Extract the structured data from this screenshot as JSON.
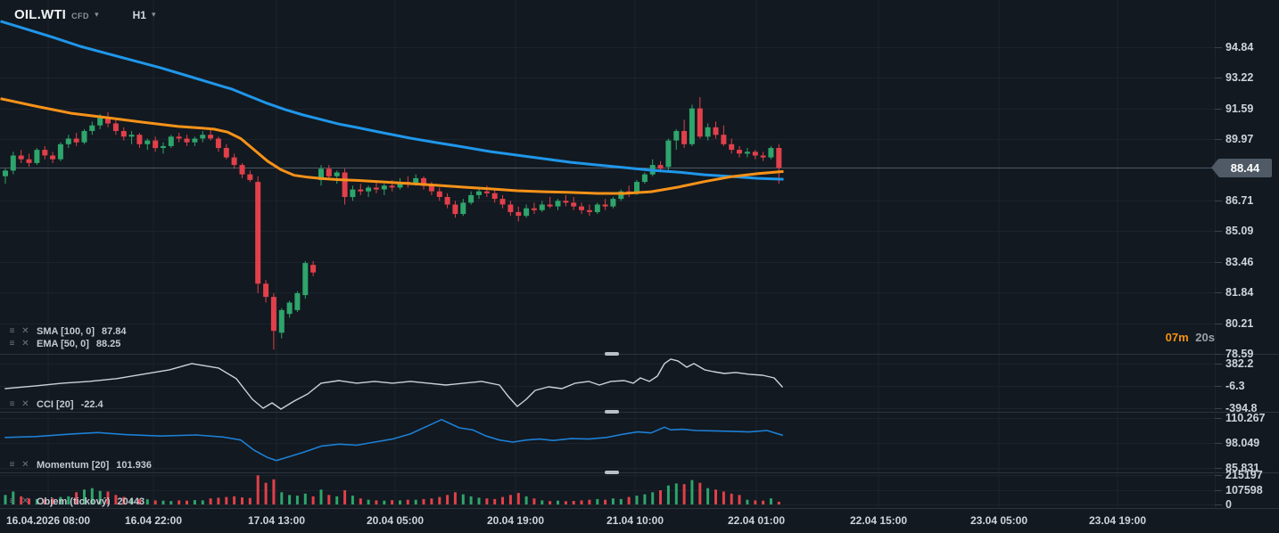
{
  "topbar": {
    "symbol": "OIL.WTI",
    "instrument_type": "CFD",
    "timeframe": "H1"
  },
  "icons": {
    "menu": "≡",
    "close": "✕",
    "caret": "▾"
  },
  "countdown": {
    "minutes": "07m",
    "seconds": "20s"
  },
  "price_axis": {
    "current_price": "88.44"
  },
  "indicators": {
    "sma": {
      "label": "SMA [100, 0]",
      "value": "87.84"
    },
    "ema": {
      "label": "EMA [50, 0]",
      "value": "88.25"
    },
    "cci": {
      "label": "CCI [20]",
      "value": "-22.4"
    },
    "momentum": {
      "label": "Momentum [20]",
      "value": "101.936"
    },
    "volume": {
      "label": "Objem (tickový)",
      "value": "20443"
    }
  },
  "time_axis": {
    "labels": [
      "16.04.2026 08:00",
      "16.04 22:00",
      "17.04 13:00",
      "20.04 05:00",
      "20.04 19:00",
      "21.04 10:00",
      "22.04 01:00",
      "22.04 15:00",
      "23.04 05:00",
      "23.04 19:00"
    ],
    "positions": [
      54,
      172,
      310,
      443,
      578,
      712,
      848,
      985,
      1120,
      1253
    ]
  },
  "colors": {
    "bg": "#121920",
    "grid": "#1c232c",
    "divider": "#2b333d",
    "handle": "#b9c0c8",
    "up": "#2ea56b",
    "down": "#e1404a",
    "sma": "#1f97ea",
    "ema": "#f79219",
    "cci_line": "#ccd2d8",
    "momentum_line": "#1d7fd4",
    "price_line": "#4d5968",
    "axis_tick": "#39424d",
    "badge_bg": "#4f5a66"
  },
  "chart_data": {
    "type": "candlestick",
    "symbol": "OIL.WTI",
    "timeframe": "H1",
    "x_start": 6,
    "x_step": 8.85,
    "main_ylim": [
      78.58,
      97.35
    ],
    "price_ticks": [
      94.84,
      93.22,
      91.59,
      89.97,
      86.71,
      85.09,
      83.46,
      81.84,
      80.21,
      78.59
    ],
    "current_price": 88.44,
    "candles": [
      [
        88.0,
        88.4,
        87.6,
        88.3
      ],
      [
        88.3,
        89.3,
        88.1,
        89.1
      ],
      [
        89.1,
        89.4,
        88.7,
        88.9
      ],
      [
        88.9,
        89.2,
        88.5,
        88.7
      ],
      [
        88.7,
        89.5,
        88.6,
        89.4
      ],
      [
        89.4,
        89.6,
        88.9,
        89.1
      ],
      [
        89.1,
        89.3,
        88.7,
        88.9
      ],
      [
        88.9,
        89.8,
        88.8,
        89.7
      ],
      [
        89.7,
        90.2,
        89.5,
        90.0
      ],
      [
        90.0,
        90.3,
        89.6,
        89.8
      ],
      [
        89.8,
        90.5,
        89.7,
        90.4
      ],
      [
        90.4,
        90.9,
        90.2,
        90.7
      ],
      [
        90.7,
        91.3,
        90.5,
        91.1
      ],
      [
        91.1,
        91.4,
        90.6,
        90.8
      ],
      [
        90.8,
        91.0,
        90.2,
        90.4
      ],
      [
        90.4,
        90.6,
        89.9,
        90.1
      ],
      [
        90.1,
        90.4,
        89.7,
        90.2
      ],
      [
        90.2,
        90.3,
        89.5,
        89.7
      ],
      [
        89.7,
        90.0,
        89.4,
        89.9
      ],
      [
        89.9,
        90.1,
        89.3,
        89.5
      ],
      [
        89.5,
        89.8,
        89.2,
        89.6
      ],
      [
        89.6,
        90.2,
        89.5,
        90.1
      ],
      [
        90.1,
        90.3,
        89.8,
        90.0
      ],
      [
        90.0,
        90.2,
        89.6,
        89.8
      ],
      [
        89.8,
        90.1,
        89.6,
        90.0
      ],
      [
        90.0,
        90.4,
        89.8,
        90.2
      ],
      [
        90.2,
        90.5,
        89.9,
        90.0
      ],
      [
        90.0,
        90.1,
        89.3,
        89.5
      ],
      [
        89.5,
        89.7,
        88.9,
        89.0
      ],
      [
        89.0,
        89.2,
        88.4,
        88.6
      ],
      [
        88.6,
        88.7,
        87.9,
        88.1
      ],
      [
        88.1,
        88.3,
        87.7,
        87.8
      ],
      [
        87.7,
        88.0,
        81.8,
        82.3
      ],
      [
        82.3,
        82.5,
        81.3,
        81.6
      ],
      [
        81.6,
        81.8,
        78.8,
        79.8
      ],
      [
        79.7,
        81.0,
        79.4,
        80.9
      ],
      [
        80.7,
        81.4,
        80.5,
        81.3
      ],
      [
        80.9,
        81.9,
        80.8,
        81.8
      ],
      [
        81.7,
        83.5,
        81.5,
        83.4
      ],
      [
        83.3,
        83.5,
        82.7,
        82.9
      ],
      [
        87.8,
        88.6,
        87.5,
        88.4
      ],
      [
        88.4,
        88.6,
        87.8,
        88.0
      ],
      [
        88.0,
        88.3,
        87.6,
        88.2
      ],
      [
        88.2,
        88.4,
        86.5,
        86.9
      ],
      [
        86.9,
        87.5,
        86.7,
        87.3
      ],
      [
        87.3,
        87.6,
        87.0,
        87.2
      ],
      [
        87.2,
        87.5,
        86.9,
        87.4
      ],
      [
        87.4,
        87.7,
        87.1,
        87.3
      ],
      [
        87.3,
        87.6,
        87.0,
        87.5
      ],
      [
        87.5,
        87.8,
        87.2,
        87.4
      ],
      [
        87.4,
        87.9,
        87.3,
        87.7
      ],
      [
        87.7,
        88.0,
        87.4,
        87.6
      ],
      [
        87.6,
        88.1,
        87.5,
        87.9
      ],
      [
        87.9,
        88.0,
        87.3,
        87.5
      ],
      [
        87.5,
        87.7,
        87.0,
        87.2
      ],
      [
        87.2,
        87.4,
        86.7,
        86.9
      ],
      [
        86.9,
        87.1,
        86.3,
        86.5
      ],
      [
        86.5,
        86.7,
        85.8,
        86.0
      ],
      [
        86.0,
        86.8,
        85.9,
        86.6
      ],
      [
        86.6,
        87.2,
        86.5,
        87.0
      ],
      [
        87.0,
        87.4,
        86.8,
        87.2
      ],
      [
        87.2,
        87.5,
        86.9,
        87.1
      ],
      [
        87.1,
        87.3,
        86.6,
        86.8
      ],
      [
        86.8,
        87.0,
        86.3,
        86.5
      ],
      [
        86.5,
        86.7,
        85.9,
        86.1
      ],
      [
        86.1,
        86.4,
        85.6,
        85.9
      ],
      [
        85.9,
        86.5,
        85.8,
        86.3
      ],
      [
        86.3,
        86.6,
        86.0,
        86.2
      ],
      [
        86.2,
        86.7,
        86.1,
        86.5
      ],
      [
        86.5,
        86.9,
        86.3,
        86.4
      ],
      [
        86.4,
        86.8,
        86.2,
        86.7
      ],
      [
        86.7,
        87.0,
        86.4,
        86.6
      ],
      [
        86.6,
        86.9,
        86.2,
        86.4
      ],
      [
        86.4,
        86.6,
        86.0,
        86.2
      ],
      [
        86.2,
        86.5,
        85.9,
        86.1
      ],
      [
        86.1,
        86.6,
        86.0,
        86.5
      ],
      [
        86.5,
        86.8,
        86.2,
        86.4
      ],
      [
        86.4,
        86.9,
        86.3,
        86.8
      ],
      [
        86.8,
        87.3,
        86.7,
        87.2
      ],
      [
        87.2,
        87.5,
        86.9,
        87.1
      ],
      [
        87.1,
        87.8,
        87.0,
        87.7
      ],
      [
        87.7,
        88.2,
        87.6,
        88.1
      ],
      [
        88.1,
        88.9,
        88.0,
        88.6
      ],
      [
        88.6,
        88.8,
        88.2,
        88.4
      ],
      [
        88.5,
        90.0,
        88.3,
        89.9
      ],
      [
        89.9,
        90.5,
        89.4,
        90.4
      ],
      [
        90.4,
        91.0,
        89.5,
        89.7
      ],
      [
        89.7,
        91.8,
        89.6,
        91.6
      ],
      [
        91.6,
        92.2,
        90.0,
        90.1
      ],
      [
        90.1,
        90.8,
        89.9,
        90.6
      ],
      [
        90.6,
        90.9,
        90.0,
        90.2
      ],
      [
        90.2,
        90.7,
        89.6,
        89.7
      ],
      [
        89.7,
        90.0,
        89.2,
        89.4
      ],
      [
        89.4,
        89.6,
        89.0,
        89.2
      ],
      [
        89.2,
        89.5,
        89.0,
        89.3
      ],
      [
        89.3,
        89.4,
        88.9,
        89.1
      ],
      [
        89.1,
        89.3,
        88.8,
        89.0
      ],
      [
        89.0,
        89.6,
        88.9,
        89.5
      ],
      [
        89.5,
        89.7,
        87.6,
        88.44
      ]
    ],
    "volumes": [
      70000,
      95000,
      60000,
      45000,
      40000,
      38000,
      45000,
      55000,
      60000,
      90000,
      110000,
      120000,
      100000,
      95000,
      70000,
      55000,
      45000,
      40000,
      38000,
      30000,
      28000,
      25000,
      30000,
      28000,
      32000,
      30000,
      45000,
      50000,
      55000,
      60000,
      52000,
      48000,
      215197,
      160000,
      185000,
      90000,
      70000,
      65000,
      80000,
      60000,
      110000,
      70000,
      60000,
      105000,
      65000,
      45000,
      35000,
      30000,
      28000,
      32000,
      30000,
      35000,
      35000,
      40000,
      45000,
      55000,
      70000,
      90000,
      75000,
      60000,
      50000,
      45000,
      40000,
      55000,
      70000,
      85000,
      60000,
      45000,
      30000,
      25000,
      28000,
      24000,
      26000,
      30000,
      35000,
      40000,
      35000,
      45000,
      40000,
      55000,
      65000,
      75000,
      90000,
      105000,
      140000,
      155000,
      150000,
      180000,
      160000,
      120000,
      110000,
      95000,
      80000,
      70000,
      35000,
      30000,
      28000,
      45000,
      20443
    ],
    "volume_ticks": [
      215197,
      107598,
      0
    ],
    "volume_max": 230000,
    "overlays": {
      "sma100": [
        [
          2,
          96.2
        ],
        [
          30,
          95.8
        ],
        [
          60,
          95.36
        ],
        [
          90,
          94.89
        ],
        [
          120,
          94.51
        ],
        [
          150,
          94.13
        ],
        [
          180,
          93.75
        ],
        [
          210,
          93.33
        ],
        [
          240,
          92.9
        ],
        [
          260,
          92.62
        ],
        [
          280,
          92.24
        ],
        [
          300,
          91.86
        ],
        [
          320,
          91.53
        ],
        [
          340,
          91.25
        ],
        [
          360,
          91.01
        ],
        [
          380,
          90.77
        ],
        [
          400,
          90.59
        ],
        [
          430,
          90.3
        ],
        [
          460,
          90.02
        ],
        [
          490,
          89.78
        ],
        [
          520,
          89.55
        ],
        [
          550,
          89.31
        ],
        [
          580,
          89.12
        ],
        [
          610,
          88.93
        ],
        [
          640,
          88.74
        ],
        [
          670,
          88.6
        ],
        [
          700,
          88.46
        ],
        [
          730,
          88.32
        ],
        [
          760,
          88.22
        ],
        [
          790,
          88.08
        ],
        [
          820,
          87.99
        ],
        [
          850,
          87.89
        ],
        [
          877,
          87.84
        ]
      ],
      "ema50": [
        [
          2,
          92.1
        ],
        [
          40,
          91.72
        ],
        [
          80,
          91.34
        ],
        [
          120,
          91.11
        ],
        [
          160,
          90.87
        ],
        [
          200,
          90.64
        ],
        [
          225,
          90.56
        ],
        [
          240,
          90.5
        ],
        [
          255,
          90.35
        ],
        [
          270,
          90.0
        ],
        [
          285,
          89.4
        ],
        [
          300,
          88.8
        ],
        [
          315,
          88.35
        ],
        [
          330,
          88.05
        ],
        [
          345,
          87.95
        ],
        [
          360,
          87.88
        ],
        [
          380,
          87.82
        ],
        [
          400,
          87.78
        ],
        [
          430,
          87.7
        ],
        [
          460,
          87.61
        ],
        [
          490,
          87.52
        ],
        [
          520,
          87.42
        ],
        [
          550,
          87.33
        ],
        [
          580,
          87.23
        ],
        [
          610,
          87.18
        ],
        [
          640,
          87.14
        ],
        [
          670,
          87.09
        ],
        [
          700,
          87.09
        ],
        [
          730,
          87.18
        ],
        [
          760,
          87.42
        ],
        [
          790,
          87.72
        ],
        [
          820,
          87.98
        ],
        [
          850,
          88.14
        ],
        [
          877,
          88.25
        ]
      ]
    },
    "cci": {
      "ticks": [
        382.2,
        -6.3,
        -394.8
      ],
      "ylim": [
        -459,
        539
      ],
      "points": [
        [
          6,
          -53
        ],
        [
          40,
          -6
        ],
        [
          70,
          41
        ],
        [
          100,
          72
        ],
        [
          130,
          119
        ],
        [
          160,
          197
        ],
        [
          190,
          275
        ],
        [
          215,
          384
        ],
        [
          245,
          306
        ],
        [
          265,
          119
        ],
        [
          283,
          -240
        ],
        [
          295,
          -396
        ],
        [
          305,
          -303
        ],
        [
          315,
          -412
        ],
        [
          330,
          -271
        ],
        [
          345,
          -147
        ],
        [
          360,
          41
        ],
        [
          380,
          87
        ],
        [
          400,
          41
        ],
        [
          420,
          72
        ],
        [
          440,
          41
        ],
        [
          460,
          72
        ],
        [
          480,
          41
        ],
        [
          500,
          9
        ],
        [
          520,
          41
        ],
        [
          540,
          72
        ],
        [
          560,
          9
        ],
        [
          570,
          -193
        ],
        [
          580,
          -365
        ],
        [
          590,
          -240
        ],
        [
          600,
          -84
        ],
        [
          615,
          -22
        ],
        [
          630,
          -53
        ],
        [
          645,
          41
        ],
        [
          660,
          72
        ],
        [
          672,
          9
        ],
        [
          685,
          72
        ],
        [
          700,
          87
        ],
        [
          710,
          41
        ],
        [
          718,
          134
        ],
        [
          728,
          72
        ],
        [
          737,
          165
        ],
        [
          745,
          384
        ],
        [
          752,
          462
        ],
        [
          760,
          431
        ],
        [
          770,
          321
        ],
        [
          778,
          384
        ],
        [
          790,
          275
        ],
        [
          800,
          243
        ],
        [
          812,
          212
        ],
        [
          825,
          228
        ],
        [
          840,
          197
        ],
        [
          855,
          181
        ],
        [
          868,
          134
        ],
        [
          877,
          -22.4
        ]
      ]
    },
    "momentum": {
      "ticks": [
        110.267,
        98.049,
        85.831
      ],
      "ylim": [
        83.7,
        112.9
      ],
      "points": [
        [
          6,
          100.8
        ],
        [
          40,
          101.2
        ],
        [
          80,
          102.5
        ],
        [
          110,
          103.2
        ],
        [
          140,
          102.2
        ],
        [
          180,
          101.5
        ],
        [
          220,
          102
        ],
        [
          250,
          101
        ],
        [
          270,
          99.5
        ],
        [
          285,
          94.5
        ],
        [
          300,
          91
        ],
        [
          310,
          89.5
        ],
        [
          325,
          91.5
        ],
        [
          340,
          93.5
        ],
        [
          360,
          96.5
        ],
        [
          380,
          97.5
        ],
        [
          400,
          97
        ],
        [
          420,
          98.5
        ],
        [
          440,
          100
        ],
        [
          460,
          102.5
        ],
        [
          480,
          106.5
        ],
        [
          495,
          109.5
        ],
        [
          505,
          107.5
        ],
        [
          515,
          105.5
        ],
        [
          530,
          104.5
        ],
        [
          545,
          101.5
        ],
        [
          560,
          99.5
        ],
        [
          575,
          98.5
        ],
        [
          590,
          99.5
        ],
        [
          605,
          100
        ],
        [
          620,
          99.3
        ],
        [
          640,
          100.2
        ],
        [
          660,
          100
        ],
        [
          680,
          100.8
        ],
        [
          700,
          102.5
        ],
        [
          715,
          103.5
        ],
        [
          730,
          103
        ],
        [
          745,
          105.8
        ],
        [
          752,
          104.5
        ],
        [
          765,
          104.8
        ],
        [
          780,
          104.2
        ],
        [
          800,
          104
        ],
        [
          820,
          103.8
        ],
        [
          840,
          103.5
        ],
        [
          860,
          104.2
        ],
        [
          877,
          101.936
        ]
      ]
    }
  }
}
